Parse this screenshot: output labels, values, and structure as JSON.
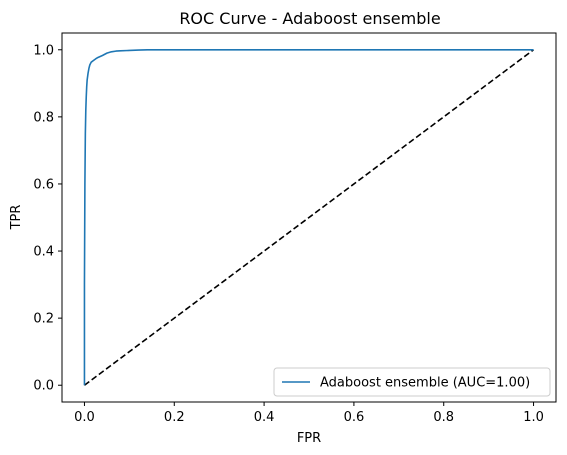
{
  "chart_data": {
    "type": "line",
    "title": "ROC Curve - Adaboost ensemble",
    "xlabel": "FPR",
    "ylabel": "TPR",
    "xlim": [
      -0.05,
      1.05
    ],
    "ylim": [
      -0.05,
      1.05
    ],
    "x_ticks": [
      0.0,
      0.2,
      0.4,
      0.6,
      0.8,
      1.0
    ],
    "y_ticks": [
      0.0,
      0.2,
      0.4,
      0.6,
      0.8,
      1.0
    ],
    "x_tick_labels": [
      "0.0",
      "0.2",
      "0.4",
      "0.6",
      "0.8",
      "1.0"
    ],
    "y_tick_labels": [
      "0.0",
      "0.2",
      "0.4",
      "0.6",
      "0.8",
      "1.0"
    ],
    "grid": false,
    "legend_position": "lower-right",
    "series": [
      {
        "name": "Adaboost ensemble (AUC=1.00)",
        "color": "#1f77b4",
        "style": "solid",
        "x": [
          0.0,
          0.0,
          0.001,
          0.002,
          0.003,
          0.004,
          0.005,
          0.006,
          0.008,
          0.01,
          0.012,
          0.015,
          0.02,
          0.025,
          0.03,
          0.04,
          0.05,
          0.06,
          0.07,
          0.08,
          0.1,
          0.12,
          0.14,
          0.2,
          0.4,
          0.6,
          0.8,
          1.0
        ],
        "y": [
          0.0,
          0.3,
          0.6,
          0.75,
          0.82,
          0.86,
          0.89,
          0.91,
          0.93,
          0.945,
          0.955,
          0.963,
          0.968,
          0.973,
          0.977,
          0.983,
          0.99,
          0.994,
          0.996,
          0.997,
          0.998,
          0.999,
          1.0,
          1.0,
          1.0,
          1.0,
          1.0,
          1.0
        ]
      },
      {
        "name": "",
        "color": "#000000",
        "style": "dashed",
        "x": [
          0.0,
          1.0
        ],
        "y": [
          0.0,
          1.0
        ]
      }
    ]
  }
}
